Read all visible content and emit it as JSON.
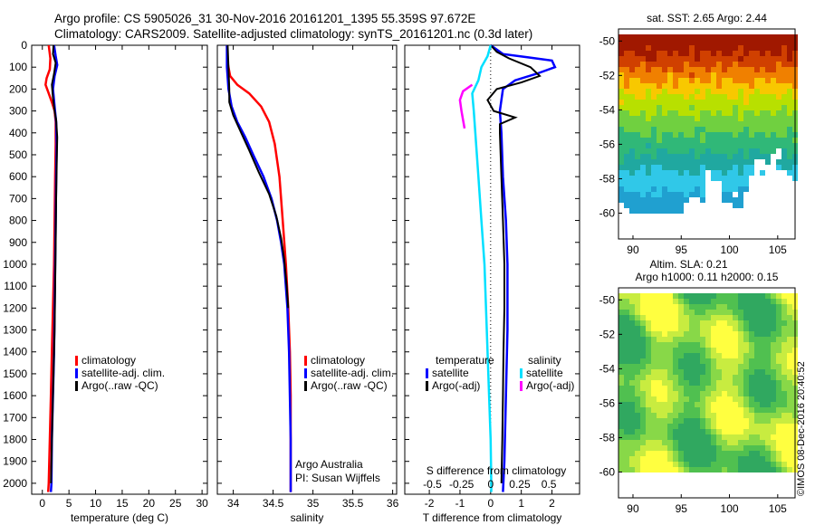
{
  "header": {
    "line1": "Argo profile: CS 5905026_31 30-Nov-2016 20161201_1395 55.359S 97.672E",
    "line2": "Climatology: CARS2009. Satellite-adjusted climatology: synTS_20161201.nc (0.3d later)"
  },
  "colors": {
    "climatology": "#ff0000",
    "satellite": "#0000ff",
    "argo": "#000000",
    "sat_salinity": "#00e0ff",
    "argo_salinity": "#ff00ff"
  },
  "chart_data": [
    {
      "type": "line",
      "panel": "temperature",
      "xlabel": "temperature (deg C)",
      "xlim": [
        -2,
        31
      ],
      "xticks": [
        "0",
        "5",
        "10",
        "15",
        "20",
        "25",
        "30"
      ],
      "xtick_values": [
        0,
        5,
        10,
        15,
        20,
        25,
        30
      ],
      "ylim": [
        0,
        2050
      ],
      "yticks": [
        "0",
        "100",
        "200",
        "300",
        "400",
        "500",
        "600",
        "700",
        "800",
        "900",
        "1000",
        "1100",
        "1200",
        "1300",
        "1400",
        "1500",
        "1600",
        "1700",
        "1800",
        "1900",
        "2000"
      ],
      "ytick_values": [
        0,
        100,
        200,
        300,
        400,
        500,
        600,
        700,
        800,
        900,
        1000,
        1100,
        1200,
        1300,
        1400,
        1500,
        1600,
        1700,
        1800,
        1900,
        2000
      ],
      "legend": [
        "climatology",
        "satellite-adj. clim.",
        "Argo(..raw -QC)"
      ],
      "legend_colors": [
        "#ff0000",
        "#0000ff",
        "#000000"
      ],
      "series": [
        {
          "color": "#ff0000",
          "points": [
            [
              1.2,
              0
            ],
            [
              1.5,
              60
            ],
            [
              1.4,
              110
            ],
            [
              0.8,
              150
            ],
            [
              0.6,
              180
            ],
            [
              1.2,
              220
            ],
            [
              1.8,
              260
            ],
            [
              2.3,
              300
            ],
            [
              2.5,
              350
            ],
            [
              2.5,
              450
            ],
            [
              2.4,
              600
            ],
            [
              2.3,
              800
            ],
            [
              2.2,
              1000
            ],
            [
              2.0,
              1200
            ],
            [
              1.8,
              1400
            ],
            [
              1.6,
              1600
            ],
            [
              1.4,
              1800
            ],
            [
              1.2,
              2000
            ],
            [
              1.1,
              2040
            ]
          ]
        },
        {
          "color": "#0000ff",
          "points": [
            [
              2.2,
              0
            ],
            [
              2.5,
              50
            ],
            [
              2.8,
              90
            ],
            [
              2.3,
              140
            ],
            [
              2.0,
              200
            ],
            [
              2.3,
              280
            ],
            [
              2.6,
              350
            ],
            [
              2.7,
              450
            ],
            [
              2.6,
              600
            ],
            [
              2.5,
              800
            ],
            [
              2.4,
              1000
            ],
            [
              2.3,
              1200
            ],
            [
              2.2,
              1400
            ],
            [
              2.0,
              1600
            ],
            [
              1.8,
              1800
            ],
            [
              1.7,
              2000
            ],
            [
              1.6,
              2040
            ]
          ]
        },
        {
          "color": "#000000",
          "points": [
            [
              2.1,
              0
            ],
            [
              2.0,
              40
            ],
            [
              2.5,
              80
            ],
            [
              2.2,
              130
            ],
            [
              1.8,
              180
            ],
            [
              2.0,
              240
            ],
            [
              2.3,
              300
            ],
            [
              2.6,
              340
            ],
            [
              2.8,
              420
            ],
            [
              2.7,
              550
            ],
            [
              2.6,
              700
            ],
            [
              2.5,
              900
            ],
            [
              2.4,
              1100
            ],
            [
              2.3,
              1300
            ],
            [
              2.1,
              1500
            ],
            [
              1.9,
              1700
            ],
            [
              1.7,
              1900
            ],
            [
              1.6,
              2000
            ]
          ]
        }
      ]
    },
    {
      "type": "line",
      "panel": "salinity",
      "xlabel": "salinity",
      "xlim": [
        33.8,
        36.05
      ],
      "xticks": [
        "34",
        "34.5",
        "35",
        "35.5",
        "36"
      ],
      "xtick_values": [
        34,
        34.5,
        35,
        35.5,
        36
      ],
      "ylim": [
        0,
        2050
      ],
      "legend": [
        "climatology",
        "satellite-adj. clim.",
        "Argo(..raw -QC)"
      ],
      "legend_colors": [
        "#ff0000",
        "#0000ff",
        "#000000"
      ],
      "annotation": [
        "Argo Australia",
        "PI: Susan Wijffels"
      ],
      "series": [
        {
          "color": "#ff0000",
          "points": [
            [
              33.92,
              0
            ],
            [
              33.93,
              80
            ],
            [
              33.96,
              140
            ],
            [
              34.05,
              180
            ],
            [
              34.2,
              220
            ],
            [
              34.35,
              280
            ],
            [
              34.45,
              350
            ],
            [
              34.52,
              450
            ],
            [
              34.58,
              600
            ],
            [
              34.62,
              800
            ],
            [
              34.66,
              1000
            ],
            [
              34.69,
              1200
            ],
            [
              34.71,
              1400
            ],
            [
              34.72,
              1600
            ],
            [
              34.72,
              1800
            ],
            [
              34.72,
              2000
            ],
            [
              34.72,
              2040
            ]
          ]
        },
        {
          "color": "#0000ff",
          "points": [
            [
              33.92,
              0
            ],
            [
              33.92,
              100
            ],
            [
              33.94,
              200
            ],
            [
              33.98,
              280
            ],
            [
              34.05,
              350
            ],
            [
              34.15,
              420
            ],
            [
              34.25,
              500
            ],
            [
              34.38,
              600
            ],
            [
              34.48,
              700
            ],
            [
              34.55,
              800
            ],
            [
              34.6,
              900
            ],
            [
              34.64,
              1000
            ],
            [
              34.68,
              1200
            ],
            [
              34.7,
              1400
            ],
            [
              34.71,
              1600
            ],
            [
              34.72,
              1800
            ],
            [
              34.72,
              2000
            ],
            [
              34.72,
              2040
            ]
          ]
        },
        {
          "color": "#000000",
          "points": [
            [
              33.93,
              0
            ],
            [
              33.94,
              100
            ],
            [
              33.95,
              200
            ],
            [
              33.95,
              260
            ],
            [
              34.0,
              320
            ],
            [
              34.1,
              400
            ],
            [
              34.2,
              480
            ],
            [
              34.32,
              580
            ],
            [
              34.45,
              680
            ],
            [
              34.54,
              780
            ],
            [
              34.6,
              880
            ],
            [
              34.64,
              980
            ],
            [
              34.67,
              1100
            ],
            [
              34.69,
              1200
            ]
          ]
        }
      ]
    },
    {
      "type": "line",
      "panel": "differences",
      "xlabel": "T difference from climatology",
      "xlim": [
        -2.8,
        2.9
      ],
      "xticks": [
        "-2",
        "-1",
        "0",
        "1",
        "2"
      ],
      "xtick_values": [
        -2,
        -1,
        0,
        1,
        2
      ],
      "xlabel_top": "S difference from climatology",
      "xticks_top": [
        "-0.5",
        "-0.25",
        "0",
        "0.25",
        "0.5"
      ],
      "xtick_top_positions": [
        -1.9,
        -0.95,
        0,
        0.95,
        1.9
      ],
      "ylim": [
        0,
        2050
      ],
      "legend_left_title": "temperature",
      "legend_left": [
        "satellite",
        "Argo(-adj)"
      ],
      "legend_left_colors": [
        "#0000ff",
        "#000000"
      ],
      "legend_right_title": "salinity",
      "legend_right": [
        "satellite",
        "Argo(-adj)"
      ],
      "legend_right_colors": [
        "#00e0ff",
        "#ff00ff"
      ],
      "series": [
        {
          "color": "#0000ff",
          "points": [
            [
              0,
              0
            ],
            [
              0.2,
              20
            ],
            [
              0.4,
              40
            ],
            [
              1.2,
              55
            ],
            [
              2.0,
              70
            ],
            [
              2.1,
              100
            ],
            [
              1.5,
              130
            ],
            [
              0.8,
              160
            ],
            [
              0.4,
              200
            ],
            [
              0.3,
              300
            ],
            [
              0.35,
              400
            ],
            [
              0.4,
              600
            ],
            [
              0.5,
              800
            ],
            [
              0.55,
              1000
            ],
            [
              0.55,
              1300
            ],
            [
              0.5,
              1600
            ],
            [
              0.45,
              1900
            ],
            [
              0.4,
              2040
            ]
          ]
        },
        {
          "color": "#000000",
          "points": [
            [
              0,
              0
            ],
            [
              0.2,
              30
            ],
            [
              0.6,
              60
            ],
            [
              1.3,
              100
            ],
            [
              1.6,
              140
            ],
            [
              1.0,
              170
            ],
            [
              0.2,
              200
            ],
            [
              -0.1,
              250
            ],
            [
              0.1,
              300
            ],
            [
              0.8,
              330
            ],
            [
              0.3,
              360
            ],
            [
              0.3,
              400
            ],
            [
              0.35,
              600
            ],
            [
              0.4,
              800
            ],
            [
              0.45,
              1000
            ],
            [
              0.45,
              1200
            ],
            [
              0.42,
              1400
            ],
            [
              0.4,
              1600
            ],
            [
              0.38,
              1800
            ],
            [
              0.35,
              2000
            ]
          ]
        },
        {
          "color": "#00e0ff",
          "points": [
            [
              0,
              0
            ],
            [
              -0.1,
              50
            ],
            [
              -0.3,
              100
            ],
            [
              -0.4,
              160
            ],
            [
              -0.6,
              220
            ],
            [
              -0.55,
              300
            ],
            [
              -0.5,
              400
            ],
            [
              -0.4,
              600
            ],
            [
              -0.3,
              800
            ],
            [
              -0.2,
              1000
            ],
            [
              -0.15,
              1200
            ],
            [
              -0.1,
              1400
            ],
            [
              -0.05,
              1600
            ],
            [
              0,
              1800
            ],
            [
              0.02,
              2000
            ],
            [
              0.02,
              2040
            ]
          ]
        },
        {
          "color": "#ff00ff",
          "points": [
            [
              -0.6,
              180
            ],
            [
              -0.9,
              210
            ],
            [
              -1.0,
              250
            ],
            [
              -0.95,
              300
            ],
            [
              -0.9,
              340
            ],
            [
              -0.85,
              380
            ]
          ]
        }
      ]
    },
    {
      "type": "heatmap",
      "panel": "sat_sst",
      "title": "sat. SST: 2.65 Argo: 2.44",
      "xlim": [
        88.5,
        106.8
      ],
      "ylim": [
        -61.5,
        -49.3
      ],
      "xticks": [
        "90",
        "95",
        "100",
        "105"
      ],
      "xtick_values": [
        90,
        95,
        100,
        105
      ],
      "yticks": [
        "-50",
        "-52",
        "-54",
        "-56",
        "-58",
        "-60"
      ],
      "ytick_values": [
        -50,
        -52,
        -54,
        -56,
        -58,
        -60
      ]
    },
    {
      "type": "heatmap",
      "panel": "altim_sla",
      "title_lines": [
        "Altim. SLA: 0.21",
        "Argo h1000: 0.11 h2000: 0.15"
      ],
      "xlim": [
        88.5,
        106.8
      ],
      "ylim": [
        -61.5,
        -49.3
      ],
      "xticks": [
        "90",
        "95",
        "100",
        "105"
      ],
      "xtick_values": [
        90,
        95,
        100,
        105
      ],
      "yticks": [
        "-50",
        "-52",
        "-54",
        "-56",
        "-58",
        "-60"
      ],
      "ytick_values": [
        -50,
        -52,
        -54,
        -56,
        -58,
        -60
      ]
    }
  ],
  "footer": {
    "stamp": "©IMOS 08-Dec-2016 20:40:52"
  }
}
